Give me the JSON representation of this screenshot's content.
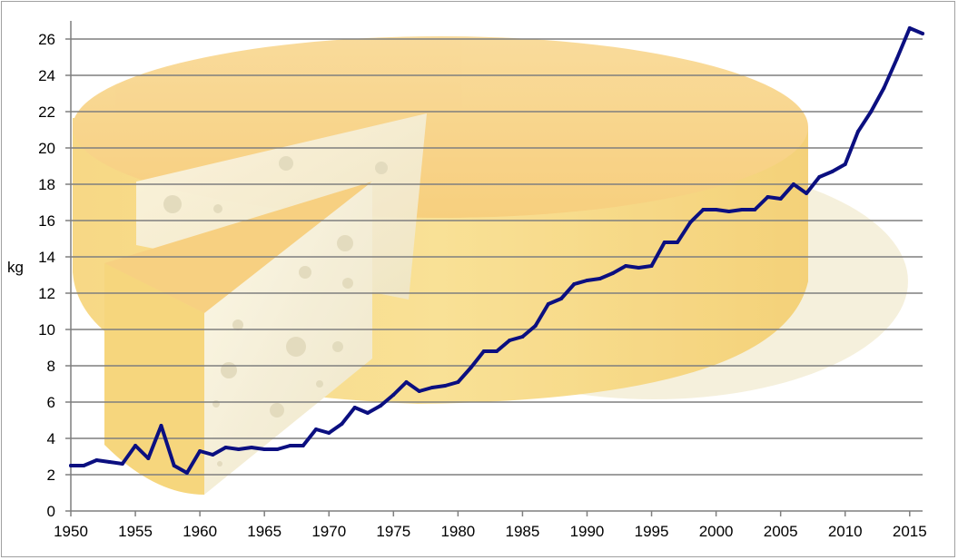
{
  "chart_data": {
    "type": "line",
    "title": "",
    "xlabel": "",
    "ylabel": "kg",
    "xlim": [
      1950,
      2016
    ],
    "ylim": [
      0,
      26
    ],
    "x_ticks": [
      1950,
      1955,
      1960,
      1965,
      1970,
      1975,
      1980,
      1985,
      1990,
      1995,
      2000,
      2005,
      2010,
      2015
    ],
    "y_ticks": [
      0,
      2,
      4,
      6,
      8,
      10,
      12,
      14,
      16,
      18,
      20,
      22,
      24,
      26
    ],
    "grid": "horizontal",
    "legend": "none",
    "background_image": "cheese-wheel-illustration",
    "colors": {
      "line": "#0b0f80",
      "grid": "#7f7f7f",
      "axis": "#7f7f7f"
    },
    "series": [
      {
        "x": [
          1950,
          1951,
          1952,
          1953,
          1954,
          1955,
          1956,
          1957,
          1958,
          1959,
          1960,
          1961,
          1962,
          1963,
          1964,
          1965,
          1966,
          1967,
          1968,
          1969,
          1970,
          1971,
          1972,
          1973,
          1974,
          1975,
          1976,
          1977,
          1978,
          1979,
          1980,
          1981,
          1982,
          1983,
          1984,
          1985,
          1986,
          1987,
          1988,
          1989,
          1990,
          1991,
          1992,
          1993,
          1994,
          1995,
          1996,
          1997,
          1998,
          1999,
          2000,
          2001,
          2002,
          2003,
          2004,
          2005,
          2006,
          2007,
          2008,
          2009,
          2010,
          2011,
          2012,
          2013,
          2014,
          2015,
          2016
        ],
        "y": [
          2.5,
          2.5,
          2.8,
          2.7,
          2.6,
          3.6,
          2.9,
          4.7,
          2.5,
          2.1,
          3.3,
          3.1,
          3.5,
          3.4,
          3.5,
          3.4,
          3.4,
          3.6,
          3.6,
          4.5,
          4.3,
          4.8,
          5.7,
          5.4,
          5.8,
          6.4,
          7.1,
          6.6,
          6.8,
          6.9,
          7.1,
          7.9,
          8.8,
          8.8,
          9.4,
          9.6,
          10.2,
          11.4,
          11.7,
          12.5,
          12.7,
          12.8,
          13.1,
          13.5,
          13.4,
          13.5,
          14.8,
          14.8,
          15.9,
          16.6,
          16.6,
          16.5,
          16.6,
          16.6,
          17.3,
          17.2,
          18.0,
          17.5,
          18.4,
          18.7,
          19.1,
          20.9,
          22.0,
          23.3,
          24.9,
          26.6,
          26.3
        ]
      }
    ]
  }
}
